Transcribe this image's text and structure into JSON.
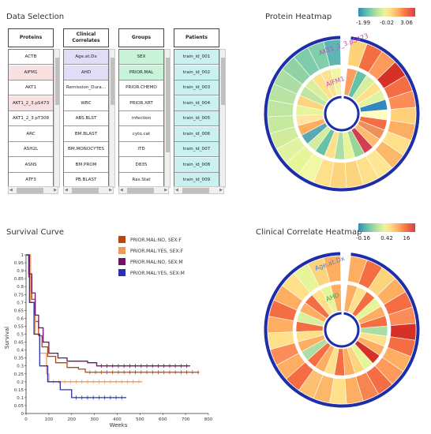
{
  "data_selection": {
    "title": "Data Selection",
    "columns": [
      {
        "header": "Proteins",
        "items": [
          "ACTB",
          "AIFM1",
          "AKT1",
          "AKT1_2_3.pS473",
          "AKT1_2_3.pT308",
          "ARC",
          "ASH2L",
          "ASNS",
          "ATF3"
        ],
        "highlight": [
          1,
          3
        ],
        "highlight_color": "#f9e1e1",
        "default_color": "#ffffff"
      },
      {
        "header": "Clinical Correlates",
        "items": [
          "Age.at.Dx",
          "AHD",
          "Remission_Dura...",
          "WBC",
          "ABS.BLST",
          "BM.BLAST",
          "BM.MONOCYTES",
          "BM.PROM",
          "PB.BLAST"
        ],
        "highlight": [
          0,
          1
        ],
        "highlight_color": "#e1ddf6",
        "default_color": "#ffffff"
      },
      {
        "header": "Groups",
        "items": [
          "SEX",
          "PRIOR.MAL",
          "PRIOR.CHEMO",
          "PRIOR.XRT",
          "infection",
          "cyto.cat",
          "ITD",
          "D835",
          "Ras.Stat"
        ],
        "highlight": [
          0,
          1
        ],
        "highlight_color": "#c9f3d8",
        "default_color": "#ffffff"
      },
      {
        "header": "Patients",
        "items": [
          "train_id_001",
          "train_id_002",
          "train_id_003",
          "train_id_004",
          "train_id_005",
          "train_id_006",
          "train_id_007",
          "train_id_008",
          "train_id_009"
        ],
        "highlight": [
          0,
          1,
          2,
          3,
          4,
          5,
          6,
          7,
          8
        ],
        "highlight_color": "#c9f1f1",
        "default_color": "#ffffff"
      }
    ]
  },
  "protein_heatmap": {
    "title": "Protein Heatmap",
    "legend": {
      "ticks": [
        "-1.99",
        "-0.02",
        "3.06"
      ]
    },
    "labels": [
      "AKT1_2_3.pS473",
      "AIFM1"
    ],
    "outer_ring": [
      "#fdd279",
      "#f46d43",
      "#fb9a59",
      "#d73027",
      "#f46d43",
      "#fc8d59",
      "#fed07a",
      "#fdae61",
      "#fee08b",
      "#fdb768",
      "#fee694",
      "#fee08b",
      "#fdd47e",
      "#fdd47e",
      "#fee08b",
      "#f1f7a4",
      "#e6f598",
      "#e0f3a0",
      "#d0ec9a",
      "#c7e89f",
      "#bfe5a0",
      "#b8e3a2",
      "#abdda4",
      "#90d2a4",
      "#7fccad",
      "#82cdaa",
      "#5eb6b4"
    ],
    "inner_ring": [
      "#fc9e5d",
      "#66c2a5",
      "#d7ee9d",
      "#fee08b",
      "#e0f3a0",
      "#3288bd",
      "#ffffbf",
      "#f46d43",
      "#ee9158",
      "#fdbc6e",
      "#d53e4f",
      "#99d594",
      "#e6f598",
      "#abdda4",
      "#fee08b",
      "#66c2a5",
      "#d3ec9e",
      "#5aa7b6",
      "#fdae61",
      "#fee6a0",
      "#e6f598",
      "#fdd47e",
      "#bfe5a0",
      "#d9ef9b",
      "#fee08b",
      "#f8e295",
      "#f0f6a3"
    ]
  },
  "survival": {
    "title": "Survival Curve",
    "legend": [
      {
        "label": "PRIOR.MAL:NO, SEX:F",
        "color": "#b5480e"
      },
      {
        "label": "PRIOR.MAL:YES, SEX:F",
        "color": "#f09a58"
      },
      {
        "label": "PRIOR.MAL:NO, SEX:M",
        "color": "#6e1466"
      },
      {
        "label": "PRIOR.MAL:YES, SEX:M",
        "color": "#2a31b1"
      }
    ]
  },
  "chart_data": {
    "type": "line",
    "xlabel": "Weeks",
    "ylabel": "Survival",
    "xlim": [
      0,
      800
    ],
    "ylim": [
      0,
      1
    ],
    "xticks": [
      0,
      100,
      200,
      300,
      400,
      500,
      600,
      700,
      800
    ],
    "yticks": [
      0,
      0.05,
      0.1,
      0.15,
      0.2,
      0.25,
      0.3,
      0.35,
      0.4,
      0.45,
      0.5,
      0.55,
      0.6,
      0.65,
      0.7,
      0.75,
      0.8,
      0.85,
      0.9,
      0.95,
      1
    ],
    "ytick_labels": [
      "0",
      "0.05",
      "0.1",
      "0.15",
      "0.2",
      "0.25",
      "0.3",
      "0.35",
      "0.4",
      "0.45",
      "0.5",
      "0.55",
      "0.6",
      "0.65",
      "0.7",
      "0.75",
      "0.8",
      "0.85",
      "0.9",
      "0.95",
      "1"
    ],
    "series": [
      {
        "name": "PRIOR.MAL:NO, SEX:F",
        "color": "#b5480e",
        "x": [
          0,
          12,
          25,
          40,
          55,
          70,
          95,
          130,
          180,
          230,
          260,
          760
        ],
        "y": [
          1,
          0.86,
          0.72,
          0.58,
          0.49,
          0.42,
          0.36,
          0.32,
          0.29,
          0.28,
          0.26,
          0.26
        ]
      },
      {
        "name": "PRIOR.MAL:YES, SEX:F",
        "color": "#f09a58",
        "x": [
          0,
          20,
          40,
          60,
          90,
          100,
          510
        ],
        "y": [
          1,
          0.7,
          0.5,
          0.38,
          0.25,
          0.2,
          0.2
        ]
      },
      {
        "name": "PRIOR.MAL:NO, SEX:M",
        "color": "#6e1466",
        "x": [
          0,
          12,
          25,
          40,
          55,
          75,
          100,
          140,
          180,
          270,
          310,
          720
        ],
        "y": [
          1,
          0.88,
          0.76,
          0.62,
          0.54,
          0.45,
          0.38,
          0.35,
          0.33,
          0.32,
          0.3,
          0.3
        ]
      },
      {
        "name": "PRIOR.MAL:YES, SEX:M",
        "color": "#2a31b1",
        "x": [
          0,
          15,
          35,
          60,
          85,
          95,
          150,
          200,
          440
        ],
        "y": [
          1,
          0.7,
          0.5,
          0.3,
          0.3,
          0.2,
          0.15,
          0.1,
          0.1
        ]
      }
    ]
  },
  "clinical_heatmap": {
    "title": "Clinical Correlate Heatmap",
    "legend": {
      "ticks": [
        "-0.16",
        "0.42",
        "16"
      ]
    },
    "labels": [
      "Age.at.Dx",
      "AHD"
    ],
    "outer_ring": [
      "#fdae61",
      "#f46d43",
      "#fdd47e",
      "#fdae61",
      "#f46d43",
      "#fc8d59",
      "#d73027",
      "#f46d43",
      "#fdae61",
      "#fc9a5c",
      "#f46d43",
      "#f78550",
      "#fdae61",
      "#fee08b",
      "#fdb768",
      "#fdc070",
      "#f46d43",
      "#fdae61",
      "#fc8d59",
      "#fee08b",
      "#fdae61",
      "#f46d43",
      "#fdae61",
      "#fee08b",
      "#e6f598",
      "#fdd47e",
      "#fdae61"
    ],
    "inner_ring": [
      "#fdae61",
      "#fee08b",
      "#f46d43",
      "#e6f598",
      "#fdae61",
      "#f46d43",
      "#abdda4",
      "#fee08b",
      "#fdae61",
      "#d73027",
      "#e6f598",
      "#fdd47e",
      "#fdae61",
      "#f46d43",
      "#fee08b",
      "#fdae61",
      "#f46d43",
      "#abdda4",
      "#fdae61",
      "#fee08b",
      "#f46d43",
      "#d9ef9b",
      "#fdae61",
      "#f46d43",
      "#fee08b",
      "#e6f598",
      "#fdae61"
    ]
  }
}
